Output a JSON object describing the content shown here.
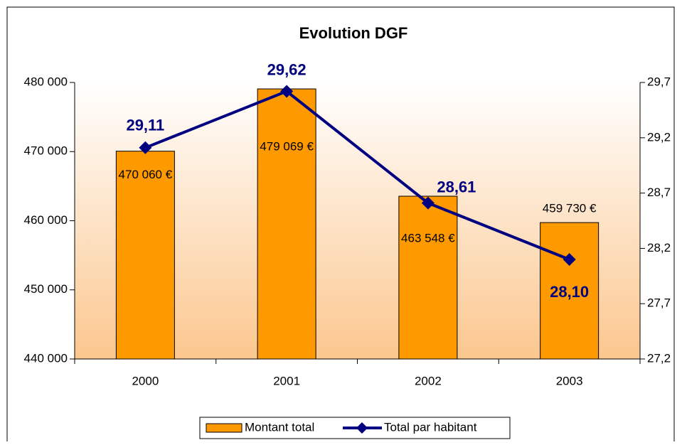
{
  "chart_data": {
    "type": "bar+line",
    "title": "Evolution DGF",
    "categories": [
      "2000",
      "2001",
      "2002",
      "2003"
    ],
    "series": [
      {
        "name": "Montant total",
        "type": "bar",
        "color": "#ff9900",
        "values": [
          470060,
          479069,
          463548,
          459730
        ],
        "value_labels": [
          "470 060 €",
          "479 069 €",
          "463 548 €",
          "459 730 €"
        ]
      },
      {
        "name": "Total par habitant",
        "type": "line",
        "axis": "y2",
        "color": "#000080",
        "values": [
          29.11,
          29.62,
          28.61,
          28.1
        ],
        "value_labels": [
          "29,11",
          "29,62",
          "28,61",
          "28,10"
        ]
      }
    ],
    "ylim": [
      440000,
      480000
    ],
    "yticks": [
      {
        "value": 440000,
        "label": "440 000"
      },
      {
        "value": 450000,
        "label": "450 000"
      },
      {
        "value": 460000,
        "label": "460 000"
      },
      {
        "value": 470000,
        "label": "470 000"
      },
      {
        "value": 480000,
        "label": "480 000"
      }
    ],
    "y2lim": [
      27.2,
      29.7
    ],
    "y2ticks": [
      {
        "value": 27.2,
        "label": "27,2"
      },
      {
        "value": 27.7,
        "label": "27,7"
      },
      {
        "value": 28.2,
        "label": "28,2"
      },
      {
        "value": 28.7,
        "label": "28,7"
      },
      {
        "value": 29.2,
        "label": "29,2"
      },
      {
        "value": 29.7,
        "label": "29,7"
      }
    ],
    "legend": "bottom"
  }
}
